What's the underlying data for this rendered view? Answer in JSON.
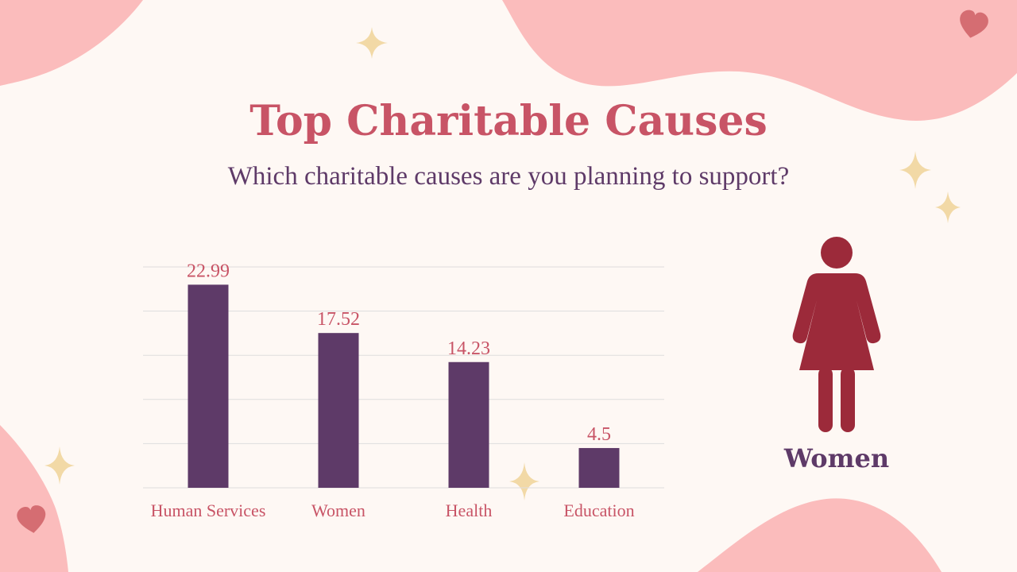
{
  "slide": {
    "title": "Top Charitable Causes",
    "subtitle": "Which charitable causes are you planning to support?",
    "figure_label": "Women"
  },
  "colors": {
    "background": "#fef8f4",
    "blob": "#fbbcbc",
    "heart": "#d56d72",
    "sparkle": "#f2d9a6",
    "bar": "#5e3a68",
    "label": "#c85466",
    "figure": "#9c2a3a",
    "grid": "#dddddd"
  },
  "chart_data": {
    "type": "bar",
    "categories": [
      "Human Services",
      "Women",
      "Health",
      "Education"
    ],
    "values": [
      22.99,
      17.52,
      14.23,
      4.5
    ],
    "ylim": [
      0,
      25
    ],
    "grid": true,
    "data_labels": [
      "22.99",
      "17.52",
      "14.23",
      "4.5"
    ]
  }
}
